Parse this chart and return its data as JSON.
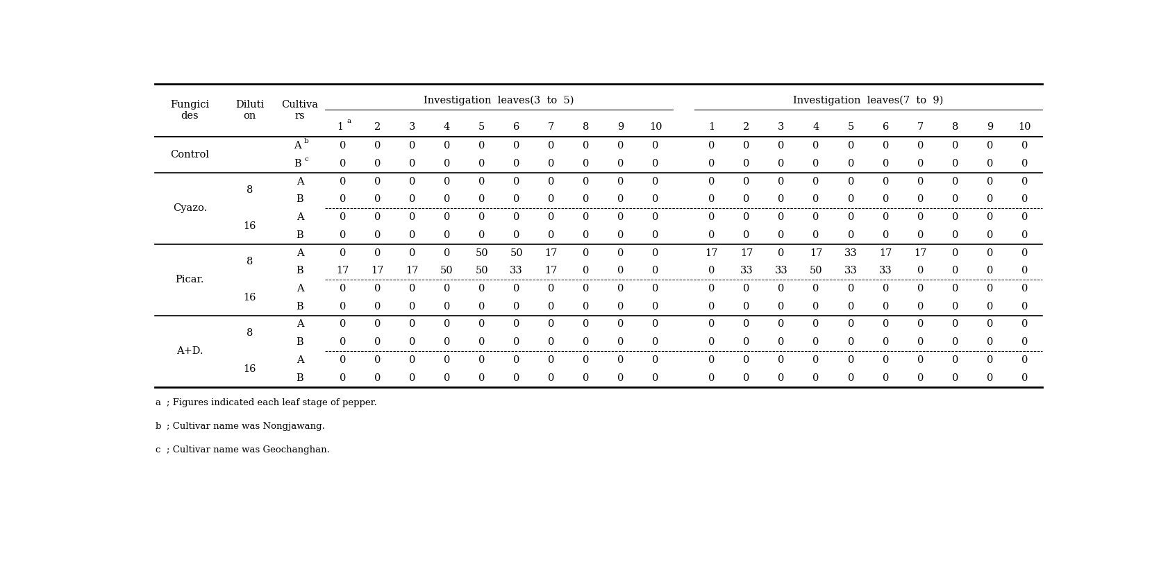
{
  "col_headers_35": [
    "1",
    "2",
    "3",
    "4",
    "5",
    "6",
    "7",
    "8",
    "9",
    "10"
  ],
  "col_headers_79": [
    "1",
    "2",
    "3",
    "4",
    "5",
    "6",
    "7",
    "8",
    "9",
    "10"
  ],
  "rows": [
    {
      "fungicide": "Control",
      "dilution": "",
      "cultivar": "A",
      "cultivar_sup": "b",
      "d35": [
        0,
        0,
        0,
        0,
        0,
        0,
        0,
        0,
        0,
        0
      ],
      "d79": [
        0,
        0,
        0,
        0,
        0,
        0,
        0,
        0,
        0,
        0
      ]
    },
    {
      "fungicide": "",
      "dilution": "",
      "cultivar": "B",
      "cultivar_sup": "c",
      "d35": [
        0,
        0,
        0,
        0,
        0,
        0,
        0,
        0,
        0,
        0
      ],
      "d79": [
        0,
        0,
        0,
        0,
        0,
        0,
        0,
        0,
        0,
        0
      ]
    },
    {
      "fungicide": "Cyazo.",
      "dilution": "8",
      "cultivar": "A",
      "cultivar_sup": "",
      "d35": [
        0,
        0,
        0,
        0,
        0,
        0,
        0,
        0,
        0,
        0
      ],
      "d79": [
        0,
        0,
        0,
        0,
        0,
        0,
        0,
        0,
        0,
        0
      ]
    },
    {
      "fungicide": "",
      "dilution": "",
      "cultivar": "B",
      "cultivar_sup": "",
      "d35": [
        0,
        0,
        0,
        0,
        0,
        0,
        0,
        0,
        0,
        0
      ],
      "d79": [
        0,
        0,
        0,
        0,
        0,
        0,
        0,
        0,
        0,
        0
      ]
    },
    {
      "fungicide": "",
      "dilution": "16",
      "cultivar": "A",
      "cultivar_sup": "",
      "d35": [
        0,
        0,
        0,
        0,
        0,
        0,
        0,
        0,
        0,
        0
      ],
      "d79": [
        0,
        0,
        0,
        0,
        0,
        0,
        0,
        0,
        0,
        0
      ]
    },
    {
      "fungicide": "",
      "dilution": "",
      "cultivar": "B",
      "cultivar_sup": "",
      "d35": [
        0,
        0,
        0,
        0,
        0,
        0,
        0,
        0,
        0,
        0
      ],
      "d79": [
        0,
        0,
        0,
        0,
        0,
        0,
        0,
        0,
        0,
        0
      ]
    },
    {
      "fungicide": "Picar.",
      "dilution": "8",
      "cultivar": "A",
      "cultivar_sup": "",
      "d35": [
        0,
        0,
        0,
        0,
        50,
        50,
        17,
        0,
        0,
        0
      ],
      "d79": [
        17,
        17,
        0,
        17,
        33,
        17,
        17,
        0,
        0,
        0
      ]
    },
    {
      "fungicide": "",
      "dilution": "",
      "cultivar": "B",
      "cultivar_sup": "",
      "d35": [
        17,
        17,
        17,
        50,
        50,
        33,
        17,
        0,
        0,
        0
      ],
      "d79": [
        0,
        33,
        33,
        50,
        33,
        33,
        0,
        0,
        0,
        0
      ]
    },
    {
      "fungicide": "",
      "dilution": "16",
      "cultivar": "A",
      "cultivar_sup": "",
      "d35": [
        0,
        0,
        0,
        0,
        0,
        0,
        0,
        0,
        0,
        0
      ],
      "d79": [
        0,
        0,
        0,
        0,
        0,
        0,
        0,
        0,
        0,
        0
      ]
    },
    {
      "fungicide": "",
      "dilution": "",
      "cultivar": "B",
      "cultivar_sup": "",
      "d35": [
        0,
        0,
        0,
        0,
        0,
        0,
        0,
        0,
        0,
        0
      ],
      "d79": [
        0,
        0,
        0,
        0,
        0,
        0,
        0,
        0,
        0,
        0
      ]
    },
    {
      "fungicide": "A+D.",
      "dilution": "8",
      "cultivar": "A",
      "cultivar_sup": "",
      "d35": [
        0,
        0,
        0,
        0,
        0,
        0,
        0,
        0,
        0,
        0
      ],
      "d79": [
        0,
        0,
        0,
        0,
        0,
        0,
        0,
        0,
        0,
        0
      ]
    },
    {
      "fungicide": "",
      "dilution": "",
      "cultivar": "B",
      "cultivar_sup": "",
      "d35": [
        0,
        0,
        0,
        0,
        0,
        0,
        0,
        0,
        0,
        0
      ],
      "d79": [
        0,
        0,
        0,
        0,
        0,
        0,
        0,
        0,
        0,
        0
      ]
    },
    {
      "fungicide": "",
      "dilution": "16",
      "cultivar": "A",
      "cultivar_sup": "",
      "d35": [
        0,
        0,
        0,
        0,
        0,
        0,
        0,
        0,
        0,
        0
      ],
      "d79": [
        0,
        0,
        0,
        0,
        0,
        0,
        0,
        0,
        0,
        0
      ]
    },
    {
      "fungicide": "",
      "dilution": "",
      "cultivar": "B",
      "cultivar_sup": "",
      "d35": [
        0,
        0,
        0,
        0,
        0,
        0,
        0,
        0,
        0,
        0
      ],
      "d79": [
        0,
        0,
        0,
        0,
        0,
        0,
        0,
        0,
        0,
        0
      ]
    }
  ],
  "fungicide_groups": [
    [
      "Control",
      0,
      1
    ],
    [
      "Cyazo.",
      2,
      5
    ],
    [
      "Picar.",
      6,
      9
    ],
    [
      "A+D.",
      10,
      13
    ]
  ],
  "dilution_groups": [
    [
      "8",
      2,
      3
    ],
    [
      "16",
      4,
      5
    ],
    [
      "8",
      6,
      7
    ],
    [
      "16",
      8,
      9
    ],
    [
      "8",
      10,
      11
    ],
    [
      "16",
      12,
      13
    ]
  ],
  "group_separators_after": [
    1,
    5,
    9
  ],
  "dilution_separators_after": [
    3,
    7,
    11
  ],
  "footnotes": [
    [
      "a",
      "; Figures indicated each leaf stage of pepper."
    ],
    [
      "b",
      "; Cultivar name was Nongjawang."
    ],
    [
      "c",
      "; Cultivar name was Geochanghan."
    ]
  ],
  "background_color": "#ffffff",
  "text_color": "#000000",
  "fontsize": 10.5,
  "header_fontsize": 10.5
}
